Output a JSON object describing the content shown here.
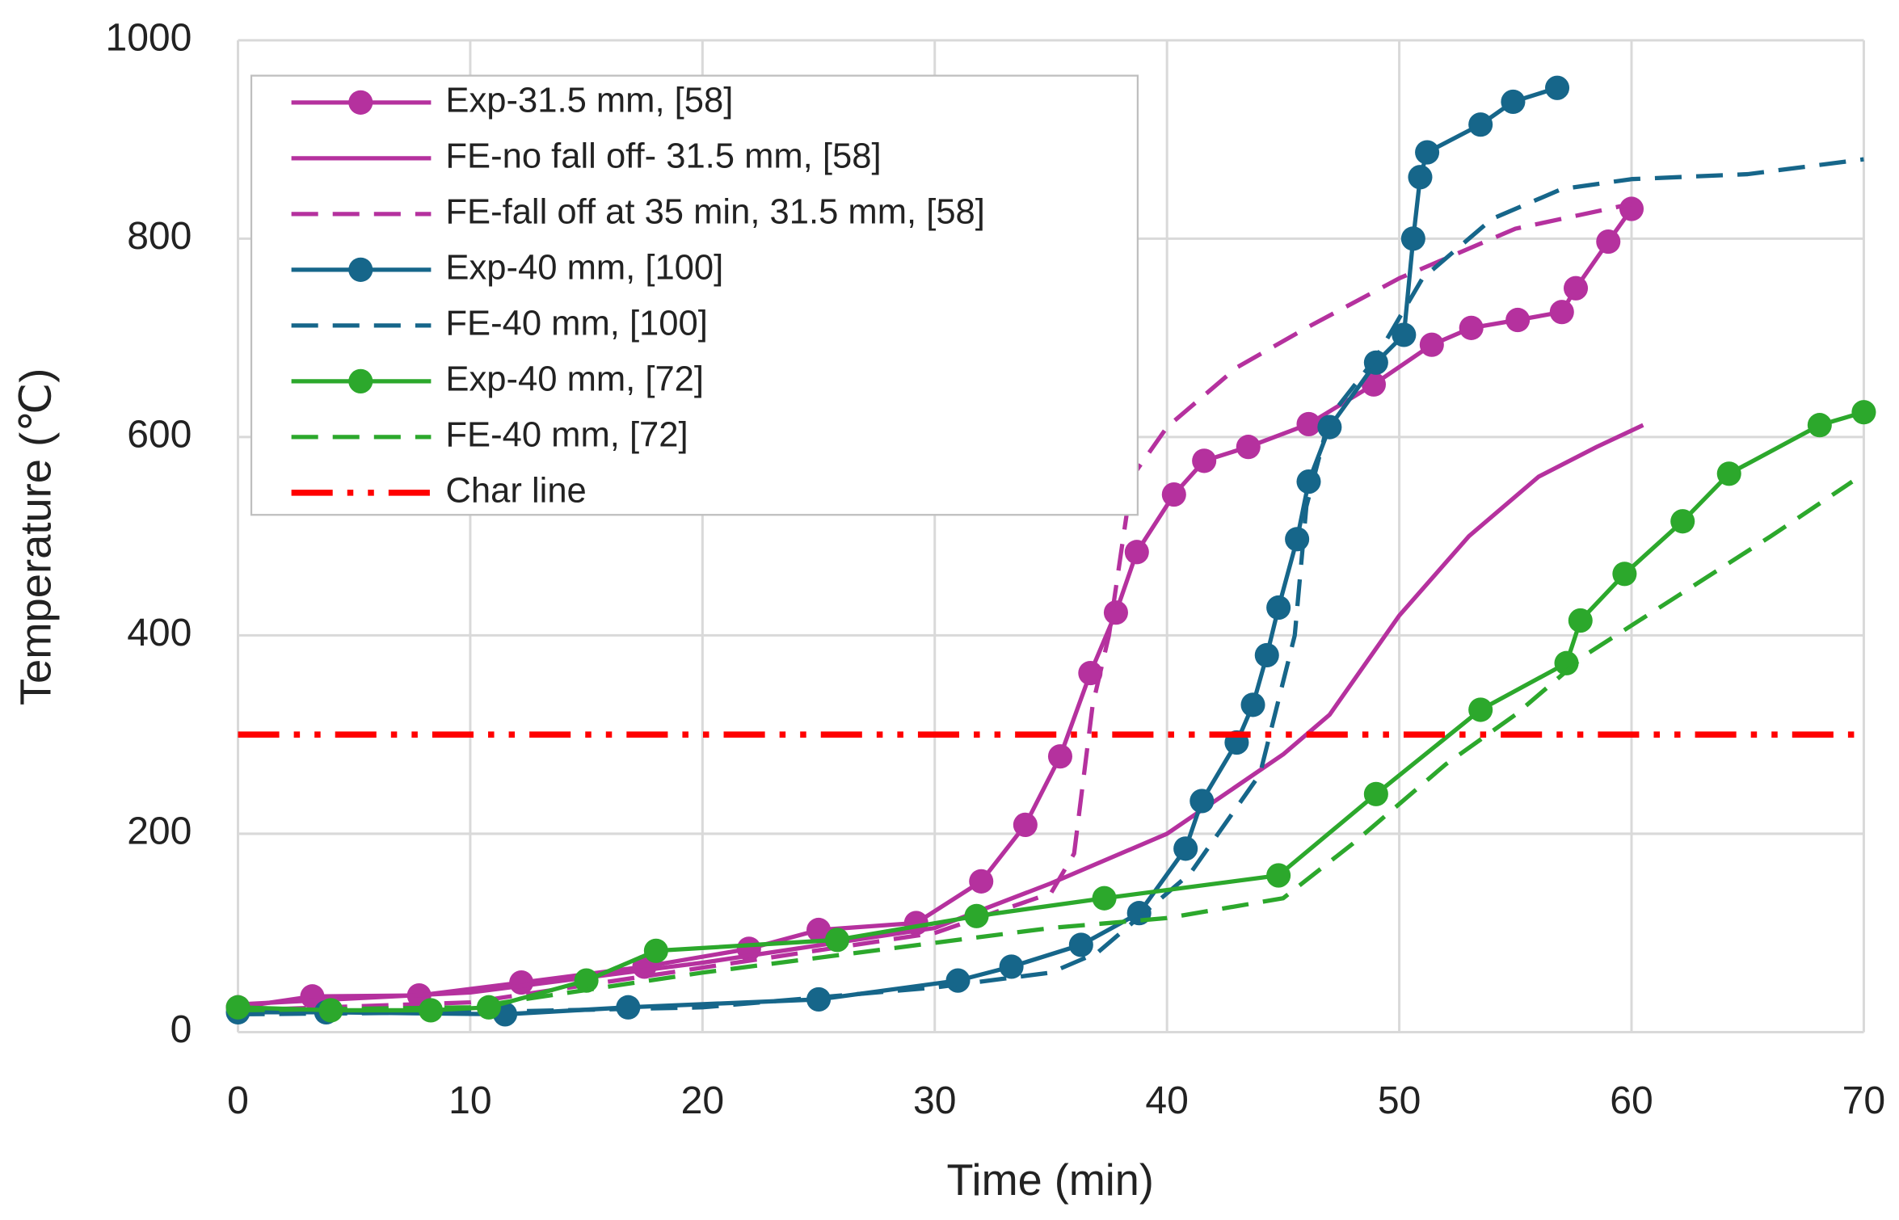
{
  "chart_data": {
    "type": "line",
    "x_label": "Time (min)",
    "y_label": "Temperature (℃)",
    "xlim": [
      0,
      70
    ],
    "ylim": [
      0,
      1000
    ],
    "xticks": [
      0,
      10,
      20,
      30,
      40,
      50,
      60,
      70
    ],
    "yticks": [
      0,
      200,
      400,
      600,
      800,
      1000
    ],
    "grid": true,
    "legend": "upper left",
    "series": [
      {
        "name": "Exp-31.5 mm, [58]",
        "color": "#b5319e",
        "linestyle": "solid",
        "markers": true,
        "x": [
          0,
          3.2,
          7.8,
          12.2,
          17.5,
          22,
          25,
          29.2,
          32,
          33.9,
          35.4,
          36.7,
          37.8,
          38.7,
          40.3,
          41.6,
          43.5,
          46.1,
          48.9,
          51.4,
          53.1,
          55.1,
          57,
          57.6,
          59,
          60
        ],
        "values": [
          25,
          36,
          37,
          50,
          66,
          84,
          103,
          110,
          152,
          209,
          278,
          362,
          423,
          484,
          542,
          576,
          590,
          613,
          653,
          693,
          710,
          718,
          726,
          750,
          797,
          830
        ]
      },
      {
        "name": "FE-no fall off- 31.5 mm, [58]",
        "color": "#b5319e",
        "linestyle": "solid",
        "markers": false,
        "x": [
          0,
          10,
          20,
          30,
          35,
          40,
          45,
          47,
          50,
          53,
          56,
          58.5,
          60.5
        ],
        "values": [
          28,
          40,
          70,
          105,
          150,
          200,
          280,
          320,
          420,
          500,
          560,
          590,
          612
        ]
      },
      {
        "name": "FE-fall off at 35 min, 31.5 mm, [58]",
        "color": "#b5319e",
        "linestyle": "dashed",
        "markers": false,
        "x": [
          0,
          10,
          20,
          30,
          35,
          36,
          36.8,
          37.5,
          38.5,
          40,
          43,
          46,
          50,
          55,
          60
        ],
        "values": [
          22,
          30,
          65,
          100,
          140,
          180,
          330,
          400,
          560,
          610,
          670,
          710,
          760,
          810,
          835
        ]
      },
      {
        "name": "Exp-40 mm, [100]",
        "color": "#16668a",
        "linestyle": "solid",
        "markers": true,
        "x": [
          0,
          3.8,
          11.5,
          16.8,
          25,
          31,
          33.3,
          36.3,
          38.8,
          40.8,
          41.5,
          43,
          43.7,
          44.3,
          44.8,
          45.6,
          46.1,
          47,
          49,
          50.2,
          50.6,
          50.9,
          51.2,
          53.5,
          54.9,
          56.8
        ],
        "values": [
          20,
          20,
          18,
          25,
          33,
          52,
          66,
          88,
          120,
          185,
          233,
          292,
          330,
          380,
          428,
          497,
          555,
          610,
          675,
          703,
          800,
          862,
          887,
          915,
          938,
          952
        ]
      },
      {
        "name": "FE-40 mm, [100]",
        "color": "#16668a",
        "linestyle": "dashed",
        "markers": false,
        "x": [
          0,
          10,
          20,
          30,
          35,
          37,
          39,
          41,
          44,
          45.5,
          46,
          47,
          49,
          51,
          54,
          57,
          60,
          65,
          70
        ],
        "values": [
          18,
          20,
          25,
          45,
          60,
          80,
          120,
          160,
          260,
          400,
          530,
          620,
          680,
          760,
          820,
          850,
          860,
          865,
          880
        ]
      },
      {
        "name": "Exp-40 mm, [72]",
        "color": "#2ca82c",
        "linestyle": "solid",
        "markers": true,
        "x": [
          0,
          4,
          8.3,
          10.8,
          15,
          18,
          25.8,
          31.8,
          37.3,
          44.8,
          49,
          53.5,
          57.2,
          57.8,
          59.7,
          62.2,
          64.2,
          68.1,
          70
        ],
        "values": [
          25,
          22,
          22,
          25,
          52,
          82,
          93,
          117,
          135,
          158,
          240,
          325,
          372,
          415,
          462,
          515,
          563,
          612,
          625
        ]
      },
      {
        "name": "FE-40 mm, [72]",
        "color": "#2ca82c",
        "linestyle": "dashed",
        "markers": false,
        "x": [
          0,
          10,
          20,
          30,
          35,
          40,
          45,
          48,
          52,
          55,
          58,
          62,
          66,
          69.5
        ],
        "values": [
          22,
          25,
          60,
          90,
          105,
          115,
          135,
          190,
          270,
          320,
          380,
          440,
          500,
          555
        ]
      },
      {
        "name": "Char line",
        "color": "#ff0000",
        "linestyle": "dashdotdot",
        "markers": false,
        "x": [
          0,
          70
        ],
        "values": [
          300,
          300
        ]
      }
    ]
  }
}
